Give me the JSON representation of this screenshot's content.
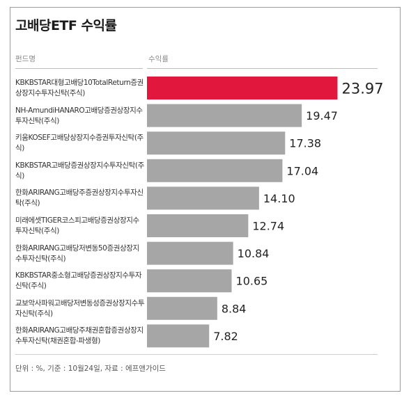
{
  "title": "고배당ETF 수익률",
  "headers": {
    "fund": "펀드명",
    "return": "수익률"
  },
  "footnote": "단위 : %, 기준 : 10월24일, 자료 : 에프앤가이드",
  "colors": {
    "highlight": "#e2173e",
    "bar": "#a6a6a6"
  },
  "chart_data": {
    "type": "bar",
    "orientation": "horizontal",
    "title": "고배당ETF 수익률",
    "categories": [
      "KBKBSTAR대형고배당10TotalReturn증권상장지수투자신탁(주식)",
      "NH-AmundiHANARO고배당증권상장지수투자신탁(주식)",
      "키움KOSEF고배당상장지수증권투자신탁(주식)",
      "KBKBSTAR고배당증권상장지수투자신탁(주식)",
      "한화ARIRANG고배당주증권상장지수투자신탁(주식)",
      "미래에셋TIGER코스피고배당증권상장지수투자신탁(주식)",
      "한화ARIRANG고배당저변동50증권상장지수투자신탁(주식)",
      "KBKBSTAR중소형고배당증권상장지수투자신탁(주식)",
      "교보악사파워고배당저변동성증권상장지수투자신탁(주식)",
      "한화ARIRANG고배당주채권혼합증권상장지수투자신탁(채권혼합-파생형)"
    ],
    "values": [
      23.97,
      19.47,
      17.38,
      17.04,
      14.1,
      12.74,
      10.84,
      10.65,
      8.84,
      7.82
    ],
    "value_labels": [
      "23.97",
      "19.47",
      "17.38",
      "17.04",
      "14.10",
      "12.74",
      "10.84",
      "10.65",
      "8.84",
      "7.82"
    ],
    "highlight_index": 0,
    "unit": "%",
    "ylabel": "수익률",
    "xlabel": "펀드명"
  }
}
